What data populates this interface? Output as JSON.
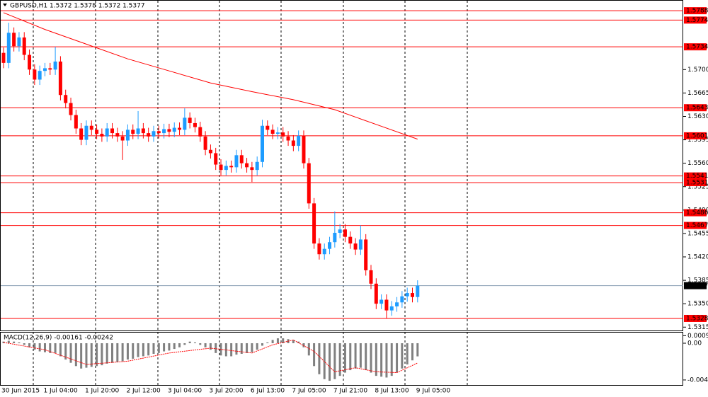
{
  "chart_data": [
    {
      "type": "candlestick",
      "title": "GBPUSD,H1 1.5372 1.5378 1.5372 1.5377",
      "categories": [
        "30 Jun 2015",
        null,
        null,
        null,
        null,
        null,
        null,
        null,
        "1 Jul 04:00",
        null,
        null,
        null,
        null,
        null,
        null,
        null,
        "1 Jul 20:00",
        null,
        null,
        null,
        null,
        null,
        null,
        null,
        "2 Jul 12:00",
        null,
        null,
        null,
        null,
        null,
        null,
        null,
        "3 Jul 04:00",
        null,
        null,
        null,
        null,
        null,
        null,
        null,
        "3 Jul 20:00",
        null,
        null,
        null,
        null,
        null,
        null,
        null,
        "6 Jul 13:00",
        null,
        null,
        null,
        null,
        null,
        null,
        null,
        "7 Jul 05:00",
        null,
        null,
        null,
        null,
        null,
        null,
        null,
        "7 Jul 21:00",
        null,
        null,
        null,
        null,
        null,
        null,
        null,
        "8 Jul 13:00",
        null,
        null,
        null,
        null,
        null,
        null,
        null,
        "9 Jul 05:00"
      ],
      "open": [
        1.5725,
        1.571,
        1.5755,
        1.5735,
        1.5748,
        1.5722,
        1.57,
        1.5685,
        1.5698,
        1.5702,
        1.57,
        1.5712,
        1.5662,
        1.565,
        1.5632,
        1.5612,
        1.5595,
        1.5616,
        1.561,
        1.5604,
        1.56,
        1.5612,
        1.5605,
        1.56,
        1.5594,
        1.561,
        1.5604,
        1.5612,
        1.5605,
        1.56,
        1.5608,
        1.5605,
        1.5611,
        1.5607,
        1.5613,
        1.561,
        1.5628,
        1.562,
        1.5614,
        1.56,
        1.558,
        1.5575,
        1.5558,
        1.555,
        1.5556,
        1.5554,
        1.5572,
        1.556,
        1.5554,
        1.555,
        1.5562,
        1.5616,
        1.561,
        1.5604,
        1.5606,
        1.56,
        1.5594,
        1.5586,
        1.5601,
        1.556,
        1.55,
        1.544,
        1.5424,
        1.5432,
        1.5442,
        1.5456,
        1.5461,
        1.545,
        1.544,
        1.5431,
        1.5446,
        1.54,
        1.538,
        1.535,
        1.5356,
        1.534,
        1.5346,
        1.5352,
        1.5361,
        1.5366,
        1.536
      ],
      "high": [
        1.5733,
        1.577,
        1.5763,
        1.5756,
        1.5756,
        1.573,
        1.5708,
        1.5706,
        1.571,
        1.571,
        1.5734,
        1.572,
        1.567,
        1.5658,
        1.564,
        1.562,
        1.5624,
        1.5624,
        1.5618,
        1.5612,
        1.562,
        1.562,
        1.5613,
        1.5608,
        1.5618,
        1.5618,
        1.5638,
        1.562,
        1.5613,
        1.5616,
        1.5616,
        1.5619,
        1.5619,
        1.5621,
        1.5621,
        1.5642,
        1.5636,
        1.5628,
        1.5622,
        1.5608,
        1.5588,
        1.5583,
        1.5566,
        1.5564,
        1.5564,
        1.558,
        1.558,
        1.5568,
        1.5562,
        1.557,
        1.5625,
        1.5624,
        1.5618,
        1.5614,
        1.5614,
        1.5608,
        1.5602,
        1.5609,
        1.5609,
        1.5568,
        1.5508,
        1.5448,
        1.544,
        1.545,
        1.5488,
        1.5469,
        1.5469,
        1.5458,
        1.5448,
        1.5467,
        1.5454,
        1.5408,
        1.5388,
        1.5364,
        1.5364,
        1.5354,
        1.536,
        1.5369,
        1.5374,
        1.5374,
        1.5385
      ],
      "low": [
        1.5702,
        1.5702,
        1.5727,
        1.5727,
        1.5714,
        1.5692,
        1.5677,
        1.5677,
        1.569,
        1.5692,
        1.5692,
        1.5654,
        1.5642,
        1.5624,
        1.5604,
        1.5587,
        1.5587,
        1.5602,
        1.5596,
        1.5592,
        1.5592,
        1.5597,
        1.5592,
        1.5565,
        1.5586,
        1.5596,
        1.5596,
        1.5597,
        1.5592,
        1.5592,
        1.5597,
        1.5597,
        1.5599,
        1.5599,
        1.5602,
        1.5602,
        1.5612,
        1.5606,
        1.5592,
        1.5572,
        1.5567,
        1.555,
        1.5542,
        1.5542,
        1.5546,
        1.5546,
        1.5552,
        1.5546,
        1.5532,
        1.5542,
        1.5554,
        1.5602,
        1.5596,
        1.5596,
        1.5592,
        1.5586,
        1.5578,
        1.5578,
        1.5552,
        1.5492,
        1.5432,
        1.5416,
        1.5416,
        1.5424,
        1.5434,
        1.5448,
        1.5442,
        1.5432,
        1.5423,
        1.5423,
        1.5392,
        1.5372,
        1.5342,
        1.5342,
        1.5328,
        1.5332,
        1.5338,
        1.5344,
        1.5353,
        1.5352,
        1.5352
      ],
      "close": [
        1.571,
        1.5755,
        1.5735,
        1.5748,
        1.5722,
        1.57,
        1.5685,
        1.5698,
        1.5702,
        1.57,
        1.5712,
        1.5662,
        1.565,
        1.5632,
        1.5612,
        1.5595,
        1.5616,
        1.561,
        1.5604,
        1.56,
        1.5612,
        1.5605,
        1.56,
        1.5594,
        1.561,
        1.5604,
        1.5612,
        1.5605,
        1.56,
        1.5608,
        1.5605,
        1.5611,
        1.5607,
        1.5613,
        1.561,
        1.5628,
        1.562,
        1.5614,
        1.56,
        1.558,
        1.5575,
        1.5558,
        1.555,
        1.5556,
        1.5554,
        1.5572,
        1.556,
        1.5554,
        1.555,
        1.5562,
        1.5616,
        1.561,
        1.5604,
        1.5606,
        1.56,
        1.5594,
        1.5586,
        1.5601,
        1.556,
        1.55,
        1.544,
        1.5424,
        1.5432,
        1.5442,
        1.5456,
        1.5461,
        1.545,
        1.544,
        1.5431,
        1.5446,
        1.54,
        1.538,
        1.535,
        1.5356,
        1.534,
        1.5346,
        1.5352,
        1.5361,
        1.5366,
        1.536,
        1.5377
      ],
      "up_color": "#1e9cff",
      "down_color": "#ff0000",
      "moving_average": {
        "x": [
          0,
          8,
          16,
          24,
          32,
          40,
          48,
          56,
          64,
          72,
          80
        ],
        "values": [
          1.5785,
          1.576,
          1.5738,
          1.5716,
          1.5698,
          1.568,
          1.5667,
          1.5655,
          1.564,
          1.5618,
          1.5596
        ],
        "color": "#ff0000"
      },
      "levels": {
        "values": [
          1.5788,
          1.5774,
          1.5734,
          1.5643,
          1.5601,
          1.5541,
          1.5531,
          1.5486,
          1.5467,
          1.5328
        ],
        "value_labels": [
          "1.5788",
          "1.5774",
          "1.5734",
          "1.5643",
          "1.5601",
          "1.5541",
          "1.5531",
          "1.5486",
          "1.5467",
          "1.5328"
        ],
        "color": "#ff0000"
      },
      "current_price": {
        "value": 1.5377,
        "value_label": "1.5377",
        "color": "#8ca0b4"
      },
      "ylim": [
        1.531,
        1.5804
      ],
      "yticks": [
        {
          "value": 1.57,
          "label": "1.5700"
        },
        {
          "value": 1.5665,
          "label": "1.5665"
        },
        {
          "value": 1.563,
          "label": "1.5630"
        },
        {
          "value": 1.5595,
          "label": "1.5595"
        },
        {
          "value": 1.556,
          "label": "1.5560"
        },
        {
          "value": 1.5525,
          "label": "1.5525"
        },
        {
          "value": 1.549,
          "label": "1.5490"
        },
        {
          "value": 1.5455,
          "label": "1.5455"
        },
        {
          "value": 1.542,
          "label": "1.5420"
        },
        {
          "value": 1.5385,
          "label": "1.5385"
        },
        {
          "value": 1.535,
          "label": "1.5350"
        },
        {
          "value": 1.5315,
          "label": "1.5315"
        }
      ]
    },
    {
      "type": "macd",
      "title": "MACD(12,26,9) -0.00161 -0.00242",
      "values": [
        0.0002,
        0.0003,
        0.0002,
        0.0001,
        -0.0002,
        -0.0005,
        -0.0008,
        -0.001,
        -0.0011,
        -0.0012,
        -0.0012,
        -0.0016,
        -0.002,
        -0.0024,
        -0.0028,
        -0.0031,
        -0.003,
        -0.0029,
        -0.0028,
        -0.0027,
        -0.0025,
        -0.0024,
        -0.0023,
        -0.0022,
        -0.002,
        -0.0019,
        -0.0017,
        -0.0016,
        -0.0015,
        -0.0013,
        -0.0012,
        -0.001,
        -0.0009,
        -0.0007,
        -0.0005,
        -0.0002,
        0.0002,
        0.0001,
        -0.0002,
        -0.0005,
        -0.0008,
        -0.0012,
        -0.0015,
        -0.0016,
        -0.0016,
        -0.0014,
        -0.0013,
        -0.0012,
        -0.0011,
        -0.0008,
        -0.0003,
        0.0001,
        0.0004,
        0.0006,
        0.0006,
        0.0005,
        0.0004,
        0.0002,
        -0.0005,
        -0.0015,
        -0.0028,
        -0.0038,
        -0.0044,
        -0.0046,
        -0.0044,
        -0.004,
        -0.0036,
        -0.0033,
        -0.0031,
        -0.003,
        -0.0033,
        -0.0036,
        -0.004,
        -0.0041,
        -0.0042,
        -0.004,
        -0.0036,
        -0.0031,
        -0.0026,
        -0.0021,
        -0.00161
      ],
      "color": "#808080",
      "signal": {
        "x": [
          0,
          8,
          16,
          24,
          32,
          40,
          48,
          52,
          56,
          60,
          64,
          68,
          72,
          76,
          80
        ],
        "values": [
          0.0001,
          -0.0008,
          -0.0026,
          -0.0022,
          -0.0012,
          -0.0006,
          -0.0012,
          -0.0002,
          0.0004,
          -0.001,
          -0.0035,
          -0.003,
          -0.0035,
          -0.0036,
          -0.00242
        ],
        "color": "#ff0000"
      },
      "ylim": [
        -0.0052,
        0.0013
      ],
      "yticks": [
        {
          "value": 0.00092,
          "label": "0.00092"
        },
        {
          "value": 0,
          "label": "0.00"
        },
        {
          "value": -0.0045,
          "label": "-0.0045"
        }
      ]
    }
  ]
}
